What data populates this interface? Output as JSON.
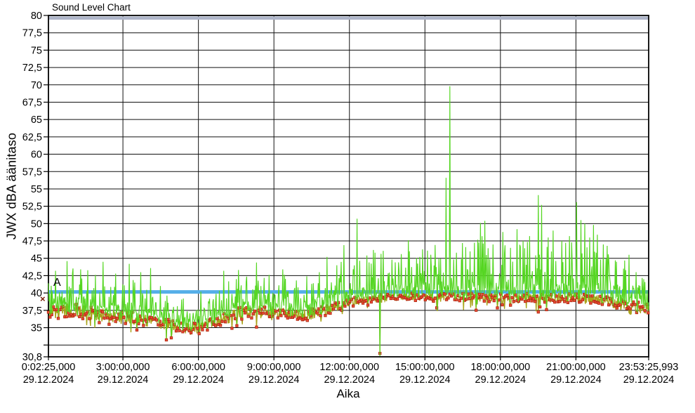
{
  "title": "Sound Level Chart",
  "chart_data": {
    "type": "line",
    "title": "Sound Level Chart",
    "xlabel": "Aika",
    "ylabel": "JWX dBA äänitaso",
    "ylim": [
      30.8,
      80
    ],
    "x_range_hours": [
      0.0403,
      23.8906
    ],
    "grid": true,
    "y_ticks": [
      {
        "v": 80,
        "label": "80"
      },
      {
        "v": 77.5,
        "label": "77,5"
      },
      {
        "v": 75,
        "label": "75"
      },
      {
        "v": 72.5,
        "label": "72,5"
      },
      {
        "v": 70,
        "label": "70"
      },
      {
        "v": 67.5,
        "label": "67,5"
      },
      {
        "v": 65,
        "label": "65"
      },
      {
        "v": 62.5,
        "label": "62,5"
      },
      {
        "v": 60,
        "label": "60"
      },
      {
        "v": 57.5,
        "label": "57,5"
      },
      {
        "v": 55,
        "label": "55"
      },
      {
        "v": 52.5,
        "label": "52,5"
      },
      {
        "v": 50,
        "label": "50"
      },
      {
        "v": 47.5,
        "label": "47,5"
      },
      {
        "v": 45,
        "label": "45"
      },
      {
        "v": 42.5,
        "label": "42,5"
      },
      {
        "v": 40,
        "label": "40"
      },
      {
        "v": 37.5,
        "label": "37,5"
      },
      {
        "v": 35,
        "label": "35"
      },
      {
        "v": 32.5,
        "label": ""
      },
      {
        "v": 30.8,
        "label": "30,8"
      }
    ],
    "x_ticks": [
      {
        "t": 0.0403,
        "time": "0:02:25,000",
        "date": "29.12.2024"
      },
      {
        "t": 3,
        "time": "3:00:00,000",
        "date": "29.12.2024"
      },
      {
        "t": 6,
        "time": "6:00:00,000",
        "date": "29.12.2024"
      },
      {
        "t": 9,
        "time": "9:00:00,000",
        "date": "29.12.2024"
      },
      {
        "t": 12,
        "time": "12:00:00,000",
        "date": "29.12.2024"
      },
      {
        "t": 15,
        "time": "15:00:00,000",
        "date": "29.12.2024"
      },
      {
        "t": 18,
        "time": "18:00:00,000",
        "date": "29.12.2024"
      },
      {
        "t": 21,
        "time": "21:00:00,000",
        "date": "29.12.2024"
      },
      {
        "t": 23.8906,
        "time": "23:53:25,993",
        "date": "29.12.2024"
      }
    ],
    "threshold_line": {
      "label": "A",
      "value": 40,
      "color": "#55AEE8"
    },
    "top_band": {
      "value": 80,
      "color": "#AEB5C9"
    },
    "cursor_marker": {
      "glyph": "×",
      "value": 38.8,
      "color": "#7A1A00"
    },
    "series": [
      {
        "name": "sound-level-green",
        "color": "#55D622",
        "style": "line"
      },
      {
        "name": "background-level-red",
        "marker_color": "#EE4D38",
        "marker_edge": "#B22A12",
        "line_color": "#A9A31B",
        "style": "line-with-square-markers"
      }
    ],
    "profile_red": [
      [
        0.04,
        37.2
      ],
      [
        0.8,
        37.5
      ],
      [
        1.6,
        37.2
      ],
      [
        2.3,
        36.8
      ],
      [
        3.0,
        36.4
      ],
      [
        3.8,
        36.1
      ],
      [
        4.6,
        35.6
      ],
      [
        5.2,
        35.1
      ],
      [
        5.9,
        34.9
      ],
      [
        6.4,
        35.5
      ],
      [
        7.0,
        36.2
      ],
      [
        7.6,
        37.0
      ],
      [
        8.4,
        37.3
      ],
      [
        9.2,
        37.1
      ],
      [
        10.0,
        36.8
      ],
      [
        10.7,
        37.0
      ],
      [
        11.3,
        37.8
      ],
      [
        11.9,
        38.5
      ],
      [
        12.5,
        39.0
      ],
      [
        13.3,
        39.3
      ],
      [
        14.2,
        39.4
      ],
      [
        15.2,
        39.5
      ],
      [
        16.2,
        39.4
      ],
      [
        17.2,
        39.4
      ],
      [
        18.2,
        39.2
      ],
      [
        19.2,
        39.3
      ],
      [
        20.2,
        39.3
      ],
      [
        21.2,
        39.2
      ],
      [
        21.9,
        39.0
      ],
      [
        22.6,
        38.6
      ],
      [
        23.1,
        37.9
      ],
      [
        23.6,
        37.8
      ],
      [
        23.89,
        38.0
      ]
    ],
    "red_jitter": [
      [
        0.04,
        1.05
      ],
      [
        3.0,
        0.95
      ],
      [
        5.5,
        0.75
      ],
      [
        8.0,
        0.95
      ],
      [
        10.5,
        0.85
      ],
      [
        11.5,
        0.65
      ],
      [
        13.0,
        0.55
      ],
      [
        16.0,
        0.55
      ],
      [
        18.5,
        0.65
      ],
      [
        20.5,
        0.7
      ],
      [
        22.3,
        0.8
      ],
      [
        23.0,
        1.0
      ],
      [
        23.89,
        0.85
      ]
    ],
    "green_amp": [
      [
        0.04,
        5.2
      ],
      [
        1.5,
        5.6
      ],
      [
        3.0,
        5.6
      ],
      [
        4.2,
        4.0
      ],
      [
        5.0,
        2.6
      ],
      [
        5.9,
        2.1
      ],
      [
        6.5,
        3.0
      ],
      [
        7.2,
        4.6
      ],
      [
        8.5,
        4.8
      ],
      [
        9.5,
        4.3
      ],
      [
        10.3,
        4.1
      ],
      [
        11.0,
        5.4
      ],
      [
        11.8,
        6.6
      ],
      [
        12.6,
        7.0
      ],
      [
        13.6,
        6.0
      ],
      [
        14.6,
        6.6
      ],
      [
        15.6,
        6.2
      ],
      [
        16.4,
        6.8
      ],
      [
        17.2,
        7.6
      ],
      [
        18.2,
        7.2
      ],
      [
        18.8,
        7.8
      ],
      [
        19.4,
        8.8
      ],
      [
        20.0,
        7.6
      ],
      [
        20.7,
        8.2
      ],
      [
        21.2,
        8.8
      ],
      [
        21.8,
        8.2
      ],
      [
        22.4,
        6.4
      ],
      [
        23.0,
        5.2
      ],
      [
        23.89,
        4.6
      ]
    ],
    "events": [
      [
        0.32,
        43.2
      ],
      [
        0.78,
        44.6
      ],
      [
        1.32,
        43.4
      ],
      [
        1.9,
        42.6
      ],
      [
        2.2,
        44.5
      ],
      [
        2.7,
        42.8
      ],
      [
        3.25,
        44.2
      ],
      [
        3.7,
        43.0
      ],
      [
        4.1,
        43.6
      ],
      [
        4.5,
        41.0
      ],
      [
        5.4,
        39.2
      ],
      [
        6.1,
        40.2
      ],
      [
        7.0,
        43.2
      ],
      [
        7.5,
        42.0
      ],
      [
        8.3,
        44.4
      ],
      [
        8.8,
        42.6
      ],
      [
        9.35,
        43.4
      ],
      [
        9.9,
        41.8
      ],
      [
        10.3,
        42.4
      ],
      [
        10.8,
        43.0
      ],
      [
        11.1,
        45.2
      ],
      [
        11.5,
        44.0
      ],
      [
        11.78,
        46.9
      ],
      [
        12.3,
        50.7
      ],
      [
        12.7,
        45.4
      ],
      [
        12.95,
        46.2
      ],
      [
        13.7,
        44.8
      ],
      [
        14.05,
        45.6
      ],
      [
        14.35,
        47.6
      ],
      [
        14.8,
        45.2
      ],
      [
        15.1,
        46.1
      ],
      [
        15.55,
        45.0
      ],
      [
        15.83,
        56.6
      ],
      [
        16.0,
        69.8
      ],
      [
        16.25,
        45.8
      ],
      [
        16.5,
        47.2
      ],
      [
        16.8,
        46.0
      ],
      [
        17.2,
        50.1
      ],
      [
        17.38,
        50.4
      ],
      [
        17.7,
        47.0
      ],
      [
        18.1,
        48.8
      ],
      [
        18.4,
        46.5
      ],
      [
        18.65,
        49.2
      ],
      [
        18.9,
        47.5
      ],
      [
        19.15,
        48.2
      ],
      [
        19.5,
        54.1
      ],
      [
        19.63,
        52.7
      ],
      [
        19.9,
        48.0
      ],
      [
        20.1,
        49.0
      ],
      [
        20.45,
        47.5
      ],
      [
        20.75,
        48.2
      ],
      [
        21.02,
        53.1
      ],
      [
        21.2,
        50.5
      ],
      [
        21.35,
        50.0
      ],
      [
        21.55,
        48.0
      ],
      [
        21.7,
        49.8
      ],
      [
        21.85,
        48.4
      ],
      [
        22.1,
        47.0
      ],
      [
        22.25,
        46.8
      ],
      [
        22.6,
        44.5
      ],
      [
        22.9,
        43.5
      ],
      [
        23.1,
        45.5
      ],
      [
        23.4,
        43.0
      ],
      [
        23.7,
        42.0
      ]
    ],
    "dip_event": {
      "t": 13.22,
      "green": 30.9,
      "red": 31.3
    },
    "render_hints": {
      "seed": 11,
      "n_points": 1100,
      "marker_step": 3
    }
  }
}
